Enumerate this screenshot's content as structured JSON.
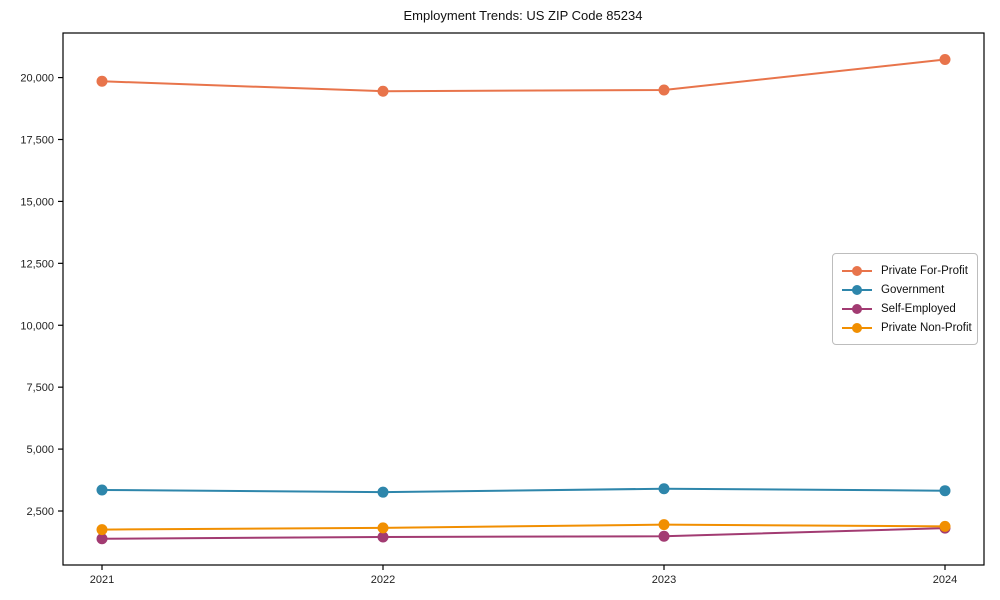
{
  "title": "Employment Trends: US ZIP Code 85234",
  "chart_data": {
    "type": "line",
    "title": "Employment Trends: US ZIP Code 85234",
    "x": [
      "2021",
      "2022",
      "2023",
      "2024"
    ],
    "series": [
      {
        "name": "Private For-Profit",
        "color": "#E8744B",
        "values": [
          19850,
          19450,
          19500,
          20730
        ]
      },
      {
        "name": "Government",
        "color": "#2E86AB",
        "values": [
          3350,
          3260,
          3400,
          3320
        ]
      },
      {
        "name": "Self-Employed",
        "color": "#A23B72",
        "values": [
          1380,
          1450,
          1480,
          1810
        ]
      },
      {
        "name": "Private Non-Profit",
        "color": "#F18F01",
        "values": [
          1750,
          1820,
          1950,
          1880
        ]
      }
    ],
    "xlabel": "",
    "ylabel": "",
    "yticks": [
      2500,
      5000,
      7500,
      10000,
      12500,
      15000,
      17500,
      20000
    ],
    "ylim": [
      320,
      21800
    ],
    "grid": false,
    "legend_position": "right",
    "axis_color": "#000000",
    "tick_label_color": "#222222",
    "marker": "circle",
    "marker_radius": 5.5,
    "line_width": 2
  }
}
